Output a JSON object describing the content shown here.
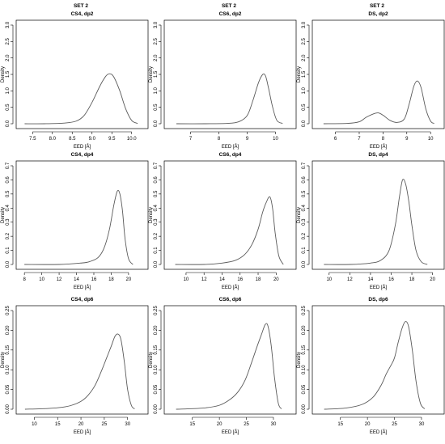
{
  "set_labels": [
    "SET 2",
    "SET 2",
    "SET 2"
  ],
  "chart_data": [
    {
      "type": "line",
      "title": "CS4, dp2",
      "xlabel": "EED [Å]",
      "ylabel": "Density",
      "xlim": [
        7.25,
        10.25
      ],
      "ylim": [
        0,
        3.0
      ],
      "xticks": [
        7.5,
        8.0,
        8.5,
        9.0,
        9.5,
        10.0
      ],
      "xtick_labels": [
        "7.5",
        "8.0",
        "8.5",
        "9.0",
        "9.5",
        "10.0"
      ],
      "yticks": [
        0,
        0.5,
        1.0,
        1.5,
        2.0,
        2.5,
        3.0
      ],
      "ytick_labels": [
        "0.0",
        "0.5",
        "1.0",
        "1.5",
        "2.0",
        "2.5",
        "3.0"
      ],
      "series": [
        {
          "x": [
            7.3,
            7.8,
            8.3,
            8.6,
            8.8,
            9.0,
            9.2,
            9.35,
            9.45,
            9.55,
            9.7,
            9.85,
            10.0,
            10.15
          ],
          "y": [
            0.0,
            0.0,
            0.02,
            0.08,
            0.25,
            0.65,
            1.15,
            1.45,
            1.52,
            1.42,
            1.0,
            0.45,
            0.1,
            0.01
          ]
        }
      ]
    },
    {
      "type": "line",
      "title": "CS6, dp2",
      "xlabel": "EED [Å]",
      "ylabel": "Density",
      "xlim": [
        6.3,
        10.5
      ],
      "ylim": [
        0,
        3.0
      ],
      "xticks": [
        7,
        8,
        9,
        10
      ],
      "xtick_labels": [
        "7",
        "8",
        "9",
        "10"
      ],
      "yticks": [
        0,
        0.5,
        1.0,
        1.5,
        2.0,
        2.5,
        3.0
      ],
      "ytick_labels": [
        "0.0",
        "0.5",
        "1.0",
        "1.5",
        "2.0",
        "2.5",
        "3.0"
      ],
      "series": [
        {
          "x": [
            6.5,
            7.5,
            8.3,
            8.7,
            9.0,
            9.2,
            9.4,
            9.55,
            9.65,
            9.75,
            9.9,
            10.05,
            10.25
          ],
          "y": [
            0.0,
            0.0,
            0.01,
            0.06,
            0.25,
            0.7,
            1.25,
            1.5,
            1.45,
            1.1,
            0.5,
            0.1,
            0.01
          ]
        }
      ]
    },
    {
      "type": "line",
      "title": "DS, dp2",
      "xlabel": "EED [Å]",
      "ylabel": "Density",
      "xlim": [
        5.3,
        10.3
      ],
      "ylim": [
        0,
        3.0
      ],
      "xticks": [
        6,
        7,
        8,
        9,
        10
      ],
      "xtick_labels": [
        "6",
        "7",
        "8",
        "9",
        "10"
      ],
      "yticks": [
        0,
        0.5,
        1.0,
        1.5,
        2.0,
        2.5,
        3.0
      ],
      "ytick_labels": [
        "0.0",
        "0.5",
        "1.0",
        "1.5",
        "2.0",
        "2.5",
        "3.0"
      ],
      "series": [
        {
          "x": [
            5.5,
            6.5,
            7.0,
            7.3,
            7.6,
            7.8,
            8.0,
            8.3,
            8.6,
            8.9,
            9.1,
            9.3,
            9.45,
            9.6,
            9.8,
            10.0,
            10.15
          ],
          "y": [
            0.0,
            0.01,
            0.06,
            0.2,
            0.3,
            0.33,
            0.26,
            0.1,
            0.04,
            0.15,
            0.6,
            1.15,
            1.3,
            1.1,
            0.45,
            0.08,
            0.01
          ]
        }
      ]
    },
    {
      "type": "line",
      "title": "CS4, dp4",
      "xlabel": "EED [Å]",
      "ylabel": "Density",
      "xlim": [
        7.8,
        21.5
      ],
      "ylim": [
        0,
        0.7
      ],
      "xticks": [
        8,
        10,
        12,
        14,
        16,
        18,
        20
      ],
      "xtick_labels": [
        "8",
        "10",
        "12",
        "14",
        "16",
        "18",
        "20"
      ],
      "yticks": [
        0,
        0.1,
        0.2,
        0.3,
        0.4,
        0.5,
        0.6,
        0.7
      ],
      "ytick_labels": [
        "0.0",
        "0.1",
        "0.2",
        "0.3",
        "0.4",
        "0.5",
        "0.6",
        "0.7"
      ],
      "series": [
        {
          "x": [
            8.0,
            12.0,
            14.5,
            15.5,
            16.5,
            17.2,
            17.8,
            18.3,
            18.7,
            19.0,
            19.3,
            19.6,
            20.0,
            20.5
          ],
          "y": [
            0.0,
            0.0,
            0.01,
            0.02,
            0.05,
            0.12,
            0.25,
            0.42,
            0.52,
            0.5,
            0.38,
            0.18,
            0.04,
            0.0
          ]
        }
      ]
    },
    {
      "type": "line",
      "title": "CS6, dp4",
      "xlabel": "EED [Å]",
      "ylabel": "Density",
      "xlim": [
        8.3,
        21.5
      ],
      "ylim": [
        0,
        0.7
      ],
      "xticks": [
        10,
        12,
        14,
        16,
        18,
        20
      ],
      "xtick_labels": [
        "10",
        "12",
        "14",
        "16",
        "18",
        "20"
      ],
      "yticks": [
        0,
        0.1,
        0.2,
        0.3,
        0.4,
        0.5,
        0.6,
        0.7
      ],
      "ytick_labels": [
        "0.0",
        "0.1",
        "0.2",
        "0.3",
        "0.4",
        "0.5",
        "0.6",
        "0.7"
      ],
      "series": [
        {
          "x": [
            8.8,
            12.0,
            14.0,
            15.5,
            16.5,
            17.3,
            18.0,
            18.5,
            18.9,
            19.3,
            19.6,
            19.9,
            20.3,
            20.8
          ],
          "y": [
            0.0,
            0.0,
            0.01,
            0.03,
            0.07,
            0.14,
            0.25,
            0.37,
            0.44,
            0.48,
            0.4,
            0.22,
            0.06,
            0.0
          ]
        }
      ]
    },
    {
      "type": "line",
      "title": "DS, dp4",
      "xlabel": "EED [Å]",
      "ylabel": "Density",
      "xlim": [
        9.0,
        20.5
      ],
      "ylim": [
        0,
        0.7
      ],
      "xticks": [
        10,
        12,
        14,
        16,
        18,
        20
      ],
      "xtick_labels": [
        "10",
        "12",
        "14",
        "16",
        "18",
        "20"
      ],
      "yticks": [
        0,
        0.1,
        0.2,
        0.3,
        0.4,
        0.5,
        0.6,
        0.7
      ],
      "ytick_labels": [
        "0.0",
        "0.1",
        "0.2",
        "0.3",
        "0.4",
        "0.5",
        "0.6",
        "0.7"
      ],
      "series": [
        {
          "x": [
            9.5,
            12.0,
            14.0,
            15.0,
            15.8,
            16.4,
            16.8,
            17.1,
            17.4,
            17.7,
            18.0,
            18.4,
            18.9,
            19.5
          ],
          "y": [
            0.0,
            0.0,
            0.01,
            0.03,
            0.1,
            0.28,
            0.48,
            0.6,
            0.57,
            0.45,
            0.28,
            0.1,
            0.02,
            0.0
          ]
        }
      ]
    },
    {
      "type": "line",
      "title": "CS4, dp6",
      "xlabel": "EED [Å]",
      "ylabel": "Density",
      "xlim": [
        7.5,
        33.0
      ],
      "ylim": [
        0,
        0.25
      ],
      "xticks": [
        10,
        15,
        20,
        25,
        30
      ],
      "xtick_labels": [
        "10",
        "15",
        "20",
        "25",
        "30"
      ],
      "yticks": [
        0,
        0.05,
        0.1,
        0.15,
        0.2,
        0.25
      ],
      "ytick_labels": [
        "0.00",
        "0.05",
        "0.10",
        "0.15",
        "0.20",
        "0.25"
      ],
      "series": [
        {
          "x": [
            8,
            13,
            16,
            18,
            20,
            21.5,
            23,
            24.5,
            25.5,
            26.5,
            27.3,
            28.0,
            28.6,
            29.3,
            30.0,
            30.8,
            31.5
          ],
          "y": [
            0.0,
            0.002,
            0.005,
            0.01,
            0.02,
            0.035,
            0.06,
            0.1,
            0.13,
            0.16,
            0.185,
            0.19,
            0.175,
            0.12,
            0.05,
            0.01,
            0.001
          ]
        }
      ]
    },
    {
      "type": "line",
      "title": "CS6, dp6",
      "xlabel": "EED [Å]",
      "ylabel": "Density",
      "xlim": [
        11.0,
        33.0
      ],
      "ylim": [
        0,
        0.25
      ],
      "xticks": [
        15,
        20,
        25,
        30
      ],
      "xtick_labels": [
        "15",
        "20",
        "25",
        "30"
      ],
      "yticks": [
        0,
        0.05,
        0.1,
        0.15,
        0.2,
        0.25
      ],
      "ytick_labels": [
        "0.00",
        "0.05",
        "0.10",
        "0.15",
        "0.20",
        "0.25"
      ],
      "series": [
        {
          "x": [
            12,
            17,
            20,
            22,
            23.5,
            24.8,
            26.0,
            27.0,
            27.8,
            28.5,
            29.0,
            29.6,
            30.2,
            30.9,
            31.5
          ],
          "y": [
            0.0,
            0.003,
            0.01,
            0.025,
            0.045,
            0.075,
            0.12,
            0.16,
            0.19,
            0.215,
            0.21,
            0.16,
            0.08,
            0.015,
            0.001
          ]
        }
      ]
    },
    {
      "type": "line",
      "title": "DS, dp6",
      "xlabel": "EED [Å]",
      "ylabel": "Density",
      "xlim": [
        11.0,
        33.0
      ],
      "ylim": [
        0,
        0.25
      ],
      "xticks": [
        15,
        20,
        25,
        30
      ],
      "xtick_labels": [
        "15",
        "20",
        "25",
        "30"
      ],
      "yticks": [
        0,
        0.05,
        0.1,
        0.15,
        0.2,
        0.25
      ],
      "ytick_labels": [
        "0.00",
        "0.05",
        "0.10",
        "0.15",
        "0.20",
        "0.25"
      ],
      "series": [
        {
          "x": [
            12,
            16,
            19,
            21,
            22.5,
            23.5,
            24.3,
            25.0,
            25.7,
            26.4,
            27.0,
            27.6,
            28.3,
            29.0,
            29.8,
            30.6
          ],
          "y": [
            0.0,
            0.003,
            0.012,
            0.03,
            0.06,
            0.09,
            0.11,
            0.13,
            0.17,
            0.205,
            0.222,
            0.21,
            0.15,
            0.07,
            0.015,
            0.001
          ]
        }
      ]
    }
  ]
}
